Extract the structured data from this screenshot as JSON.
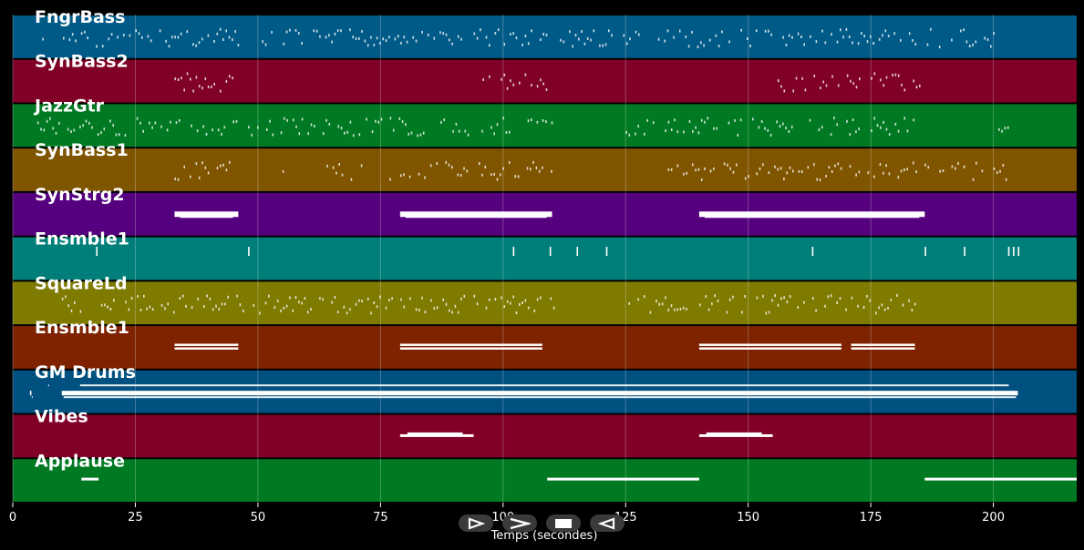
{
  "chart_data": {
    "type": "piano-roll",
    "xlabel": "Temps (secondes)",
    "xlim": [
      0,
      217
    ],
    "x_ticks": [
      0,
      25,
      50,
      75,
      100,
      125,
      150,
      175,
      200
    ],
    "grid": true,
    "tracks": [
      {
        "name": "FngrBass",
        "color": "#005a87",
        "segments": [
          [
            6,
            6.5
          ],
          [
            9,
            24
          ],
          [
            25,
            46
          ],
          [
            49,
            93
          ],
          [
            94,
            109
          ],
          [
            111,
            128
          ],
          [
            131,
            145
          ],
          [
            146,
            155
          ],
          [
            157,
            201
          ]
        ],
        "style": "notes"
      },
      {
        "name": "SynBass2",
        "color": "#800028",
        "segments": [
          [
            33,
            46
          ],
          [
            94,
            109
          ],
          [
            156,
            186
          ]
        ],
        "style": "notes"
      },
      {
        "name": "JazzGtr",
        "color": "#007a22",
        "segments": [
          [
            5,
            46
          ],
          [
            48,
            53
          ],
          [
            54,
            71
          ],
          [
            72,
            84
          ],
          [
            86,
            93
          ],
          [
            95,
            102
          ],
          [
            105,
            107
          ],
          [
            108,
            110
          ],
          [
            125,
            131
          ],
          [
            133,
            159
          ],
          [
            160,
            168
          ],
          [
            170,
            173
          ],
          [
            175,
            186
          ],
          [
            201,
            203
          ]
        ],
        "style": "notes"
      },
      {
        "name": "SynBass1",
        "color": "#7f5500",
        "segments": [
          [
            33,
            46
          ],
          [
            55,
            55.5
          ],
          [
            64,
            70
          ],
          [
            71,
            73
          ],
          [
            75,
            77
          ],
          [
            79,
            93
          ],
          [
            95,
            110
          ],
          [
            131,
            132
          ],
          [
            133,
            143
          ],
          [
            145,
            150
          ],
          [
            151,
            187
          ],
          [
            189,
            198
          ],
          [
            200,
            203
          ]
        ],
        "style": "notes"
      },
      {
        "name": "SynStrg2",
        "color": "#55007f",
        "segments": [
          [
            33,
            46
          ],
          [
            79,
            110
          ],
          [
            140,
            186
          ]
        ],
        "style": "blocks"
      },
      {
        "name": "Ensmble1",
        "color": "#007f7a",
        "segments": [
          [
            17,
            17.4
          ],
          [
            48,
            48.4
          ],
          [
            102,
            102.4
          ],
          [
            109.5,
            109.9
          ],
          [
            115,
            115.4
          ],
          [
            121,
            121.4
          ],
          [
            163,
            163.4
          ],
          [
            186,
            186.4
          ],
          [
            194,
            194.4
          ],
          [
            203,
            203.4
          ],
          [
            204,
            204.4
          ],
          [
            205,
            205.4
          ]
        ],
        "style": "ticks"
      },
      {
        "name": "SquareLd",
        "color": "#7f7a00",
        "segments": [
          [
            10,
            14
          ],
          [
            18,
            47
          ],
          [
            49,
            93
          ],
          [
            94,
            108
          ],
          [
            109,
            111
          ],
          [
            125,
            138
          ],
          [
            140,
            159
          ],
          [
            160,
            170
          ],
          [
            171,
            184
          ]
        ],
        "style": "notes"
      },
      {
        "name": "Ensmble1",
        "color": "#7f2200",
        "segments": [
          [
            33,
            46
          ],
          [
            79,
            108
          ],
          [
            140,
            169
          ],
          [
            171,
            184
          ]
        ],
        "style": "double"
      },
      {
        "name": "GM Drums",
        "color": "#005080",
        "segments": [
          [
            3.5,
            3.8
          ],
          [
            10,
            205
          ]
        ],
        "style": "drums"
      },
      {
        "name": "Vibes",
        "color": "#800028",
        "segments": [
          [
            79,
            94
          ],
          [
            140,
            155
          ]
        ],
        "style": "blocks-thin"
      },
      {
        "name": "Applause",
        "color": "#007a22",
        "segments": [
          [
            14,
            17.5
          ],
          [
            109,
            140
          ],
          [
            186,
            217
          ]
        ],
        "style": "lines"
      }
    ]
  },
  "controls": [
    {
      "name": "step-forward",
      "glyph": "⊳"
    },
    {
      "name": "play",
      "glyph": ">"
    },
    {
      "name": "stop",
      "glyph": "■"
    },
    {
      "name": "rewind",
      "glyph": "◁"
    }
  ]
}
